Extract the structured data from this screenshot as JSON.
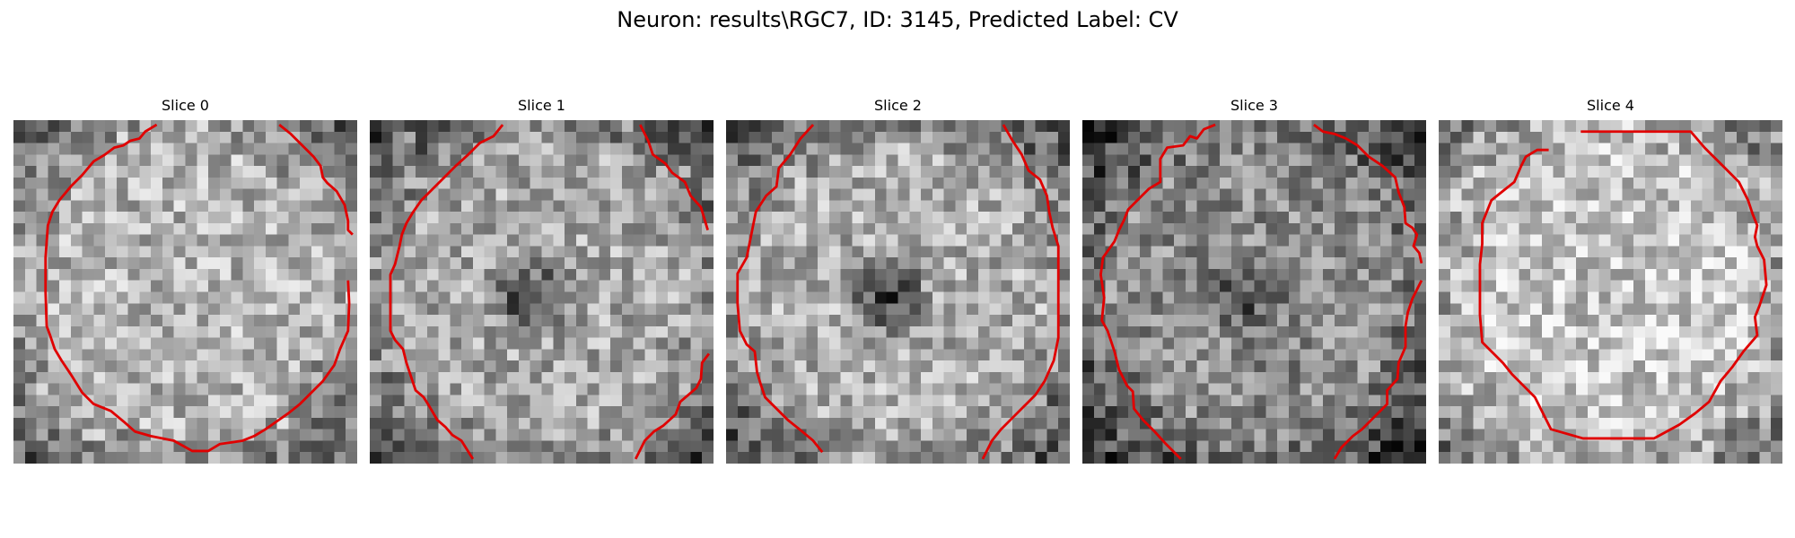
{
  "figure": {
    "title": "Neuron: results\\RGC7, ID: 3145, Predicted Label: CV"
  },
  "panels": [
    {
      "title": "Slice 0",
      "image": "grayscale-microscopy-slice",
      "contour_color": "#e00000"
    },
    {
      "title": "Slice 1",
      "image": "grayscale-microscopy-slice",
      "contour_color": "#e00000"
    },
    {
      "title": "Slice 2",
      "image": "grayscale-microscopy-slice",
      "contour_color": "#e00000"
    },
    {
      "title": "Slice 3",
      "image": "grayscale-microscopy-slice",
      "contour_color": "#e00000"
    },
    {
      "title": "Slice 4",
      "image": "grayscale-microscopy-slice",
      "contour_color": "#e00000"
    }
  ]
}
